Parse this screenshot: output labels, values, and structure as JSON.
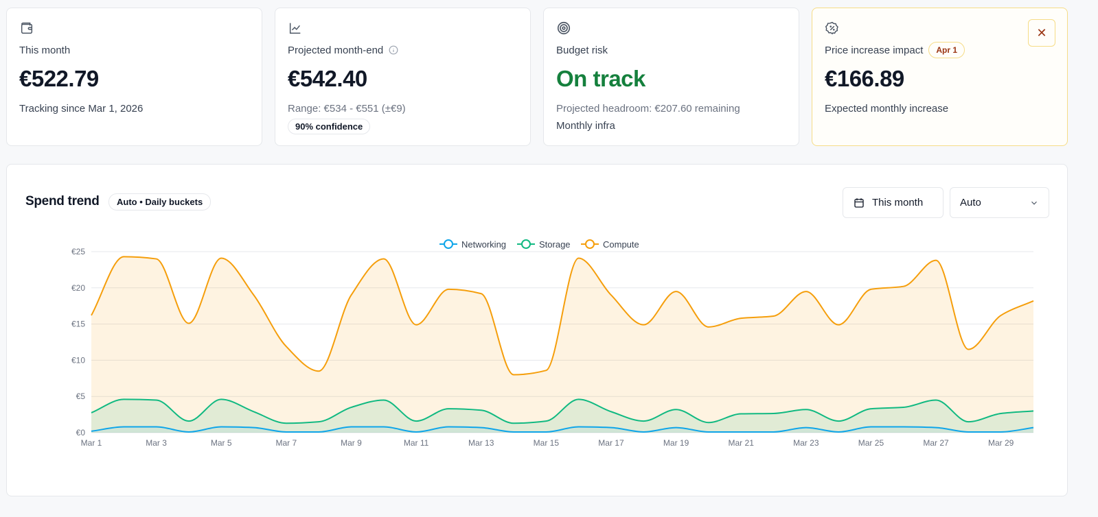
{
  "cards": [
    {
      "icon": "wallet-icon",
      "label": "This month",
      "value": "€522.79",
      "sub": "Tracking since Mar 1, 2026"
    },
    {
      "icon": "line-chart-icon",
      "label": "Projected month-end",
      "value": "€542.40",
      "sub": "Range: €534 - €551 (±€9)",
      "pill": "90% confidence"
    },
    {
      "icon": "target-icon",
      "label": "Budget risk",
      "value": "On track",
      "sub": "Projected headroom: €207.60 remaining",
      "sub2": "Monthly infra"
    },
    {
      "icon": "percent-badge-icon",
      "label": "Price increase impact",
      "badge": "Apr 1",
      "value": "€166.89",
      "sub": "Expected monthly increase"
    }
  ],
  "panel": {
    "title": "Spend trend",
    "badge": "Auto • Daily buckets",
    "range_button": "This month",
    "granularity": "Auto"
  },
  "colors": {
    "networking": "#0ea5e9",
    "storage": "#10b981",
    "compute": "#f59e0b",
    "on_track": "#15803d"
  },
  "chart_data": {
    "type": "area",
    "ylim": [
      0,
      25
    ],
    "yticks": [
      "€0",
      "€5",
      "€10",
      "€15",
      "€20",
      "€25"
    ],
    "ytick_values": [
      0,
      5,
      10,
      15,
      20,
      25
    ],
    "x": [
      "Mar 1",
      "Mar 2",
      "Mar 3",
      "Mar 4",
      "Mar 5",
      "Mar 6",
      "Mar 7",
      "Mar 8",
      "Mar 9",
      "Mar 10",
      "Mar 11",
      "Mar 12",
      "Mar 13",
      "Mar 14",
      "Mar 15",
      "Mar 16",
      "Mar 17",
      "Mar 18",
      "Mar 19",
      "Mar 20",
      "Mar 21",
      "Mar 22",
      "Mar 23",
      "Mar 24",
      "Mar 25",
      "Mar 26",
      "Mar 27",
      "Mar 28",
      "Mar 29",
      "Mar 30"
    ],
    "xticks": [
      "Mar 1",
      "Mar 3",
      "Mar 5",
      "Mar 7",
      "Mar 9",
      "Mar 11",
      "Mar 13",
      "Mar 15",
      "Mar 17",
      "Mar 19",
      "Mar 21",
      "Mar 23",
      "Mar 25",
      "Mar 27",
      "Mar 29"
    ],
    "legend": "top",
    "grid": true,
    "series": [
      {
        "name": "Networking",
        "values": [
          0.2,
          0.8,
          0.8,
          0.1,
          0.8,
          0.7,
          0.1,
          0.1,
          0.8,
          0.8,
          0.1,
          0.8,
          0.7,
          0.1,
          0.1,
          0.8,
          0.7,
          0.1,
          0.7,
          0.1,
          0.1,
          0.1,
          0.7,
          0.1,
          0.8,
          0.8,
          0.7,
          0.1,
          0.1,
          0.7
        ]
      },
      {
        "name": "Storage",
        "values": [
          2.75,
          4.6,
          4.5,
          1.6,
          4.6,
          2.9,
          1.3,
          1.5,
          3.5,
          4.5,
          1.6,
          3.3,
          3.1,
          1.3,
          1.6,
          4.6,
          2.9,
          1.6,
          3.2,
          1.4,
          2.6,
          2.65,
          3.2,
          1.6,
          3.3,
          3.5,
          4.5,
          1.5,
          2.65,
          3.0
        ]
      },
      {
        "name": "Compute",
        "values": [
          16.2,
          24.3,
          24.0,
          15.1,
          24.1,
          19.0,
          11.9,
          8.5,
          19.0,
          24.0,
          14.9,
          19.8,
          19.2,
          8.0,
          8.6,
          24.1,
          19.0,
          14.9,
          19.5,
          14.6,
          15.8,
          16.1,
          19.5,
          14.9,
          19.8,
          20.2,
          23.8,
          11.5,
          16.2,
          18.2
        ]
      }
    ]
  }
}
